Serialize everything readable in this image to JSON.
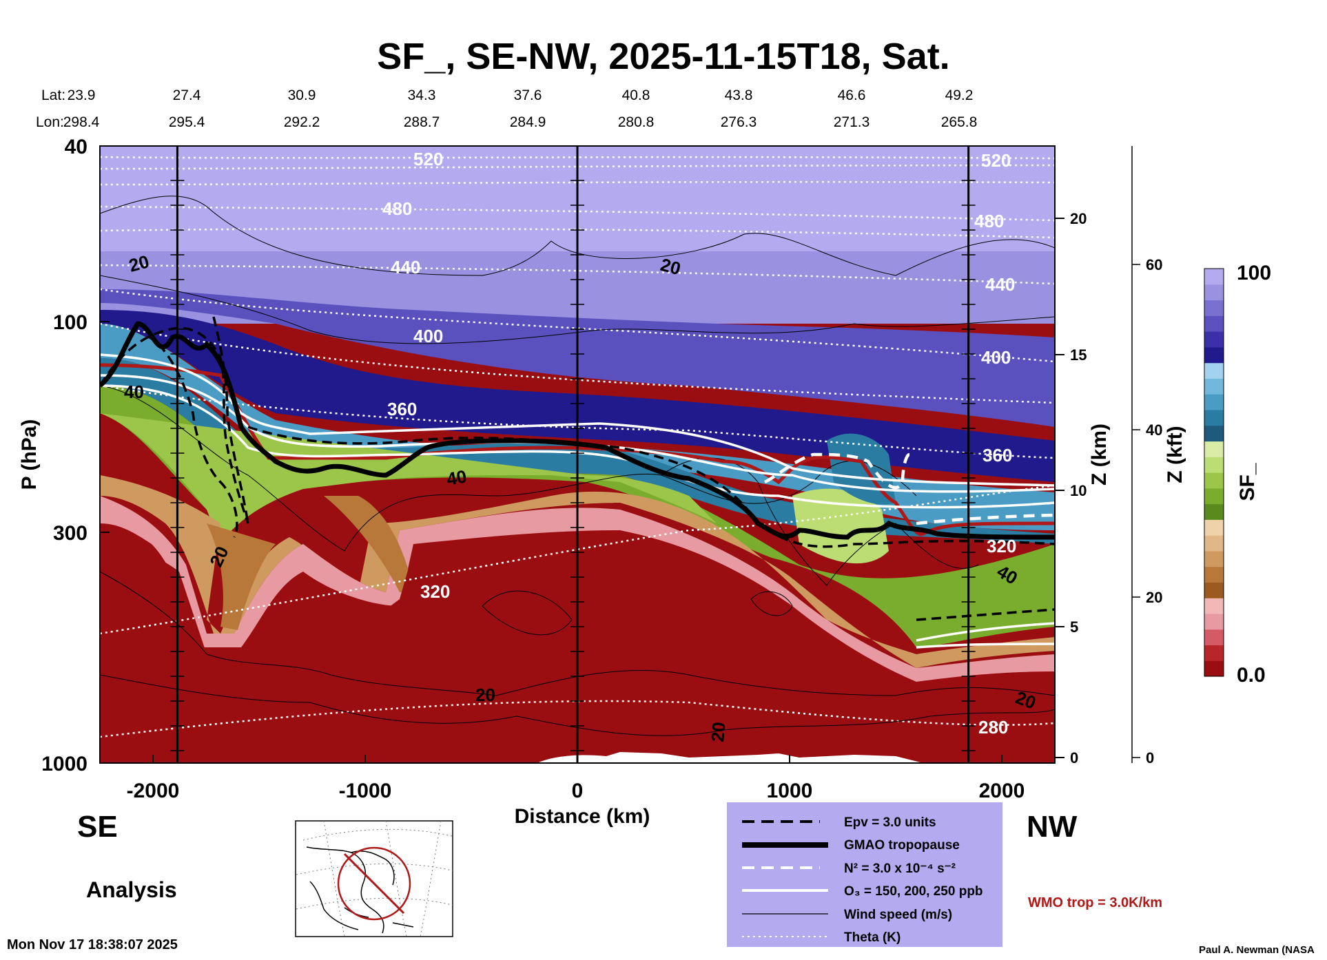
{
  "chart_data": {
    "type": "heatmap",
    "title": "SF_, SE-NW, 2025-11-15T18, Sat.",
    "lat_label": "Lat:",
    "lon_label": "Lon:",
    "lat": [
      "23.9",
      "27.4",
      "30.9",
      "34.3",
      "37.6",
      "40.8",
      "43.8",
      "46.6",
      "49.2"
    ],
    "lon": [
      "298.4",
      "295.4",
      "292.2",
      "288.7",
      "284.9",
      "280.8",
      "276.3",
      "271.3",
      "265.8"
    ],
    "xlabel": "Distance (km)",
    "ylabel": "P (hPa)",
    "xlim": [
      -2250,
      2250
    ],
    "ylim": [
      1000,
      40
    ],
    "y_log": true,
    "x_ticks": [
      "-2000",
      "-1000",
      "0",
      "1000",
      "2000"
    ],
    "y_ticks": [
      "40",
      "100",
      "300",
      "1000"
    ],
    "z_km_label": "Z (km)",
    "z_km_ticks": [
      "20",
      "15",
      "10",
      "5",
      "0"
    ],
    "z_kft_label": "Z (kft)",
    "z_kft_ticks": [
      "60",
      "40",
      "20",
      "0"
    ],
    "colorbar": {
      "label": "SF_",
      "min": "0.0",
      "max": "100",
      "colors": [
        "#9a0e12",
        "#b8262a",
        "#d45a66",
        "#e89aa2",
        "#f2b8b8",
        "#9b5a20",
        "#b8783a",
        "#cf9a60",
        "#e0b888",
        "#efd2aa",
        "#5a8a1e",
        "#7aac2e",
        "#9cc64a",
        "#bcdc74",
        "#d8eca6",
        "#1e5a7c",
        "#2a7ca2",
        "#4a9cc4",
        "#72b8dc",
        "#a2d2ee",
        "#201a8c",
        "#3a30a8",
        "#5a50be",
        "#7a70d0",
        "#9a92e0",
        "#b4aaf0"
      ]
    },
    "contour_labels": {
      "wind": [
        "20",
        "40",
        "40",
        "20",
        "40",
        "20",
        "20",
        "20",
        "20"
      ],
      "theta": [
        "520",
        "480",
        "440",
        "400",
        "360",
        "320",
        "520",
        "480",
        "440",
        "400",
        "360",
        "320",
        "280"
      ]
    },
    "side_left": "SE",
    "side_right": "NW",
    "caption": "Analysis",
    "legend": [
      {
        "label": "Epv = 3.0 units"
      },
      {
        "label": "GMAO tropopause"
      },
      {
        "label": "N² = 3.0 x 10⁻⁴ s⁻²"
      },
      {
        "label": "O₃ = 150, 200, 250 ppb"
      },
      {
        "label": "Wind speed (m/s)"
      },
      {
        "label": "Theta (K)"
      }
    ],
    "wmo_note": "WMO trop = 3.0K/km",
    "timestamp": "Mon Nov 17 18:38:07 2025",
    "credit": "Paul A. Newman (NASA"
  }
}
